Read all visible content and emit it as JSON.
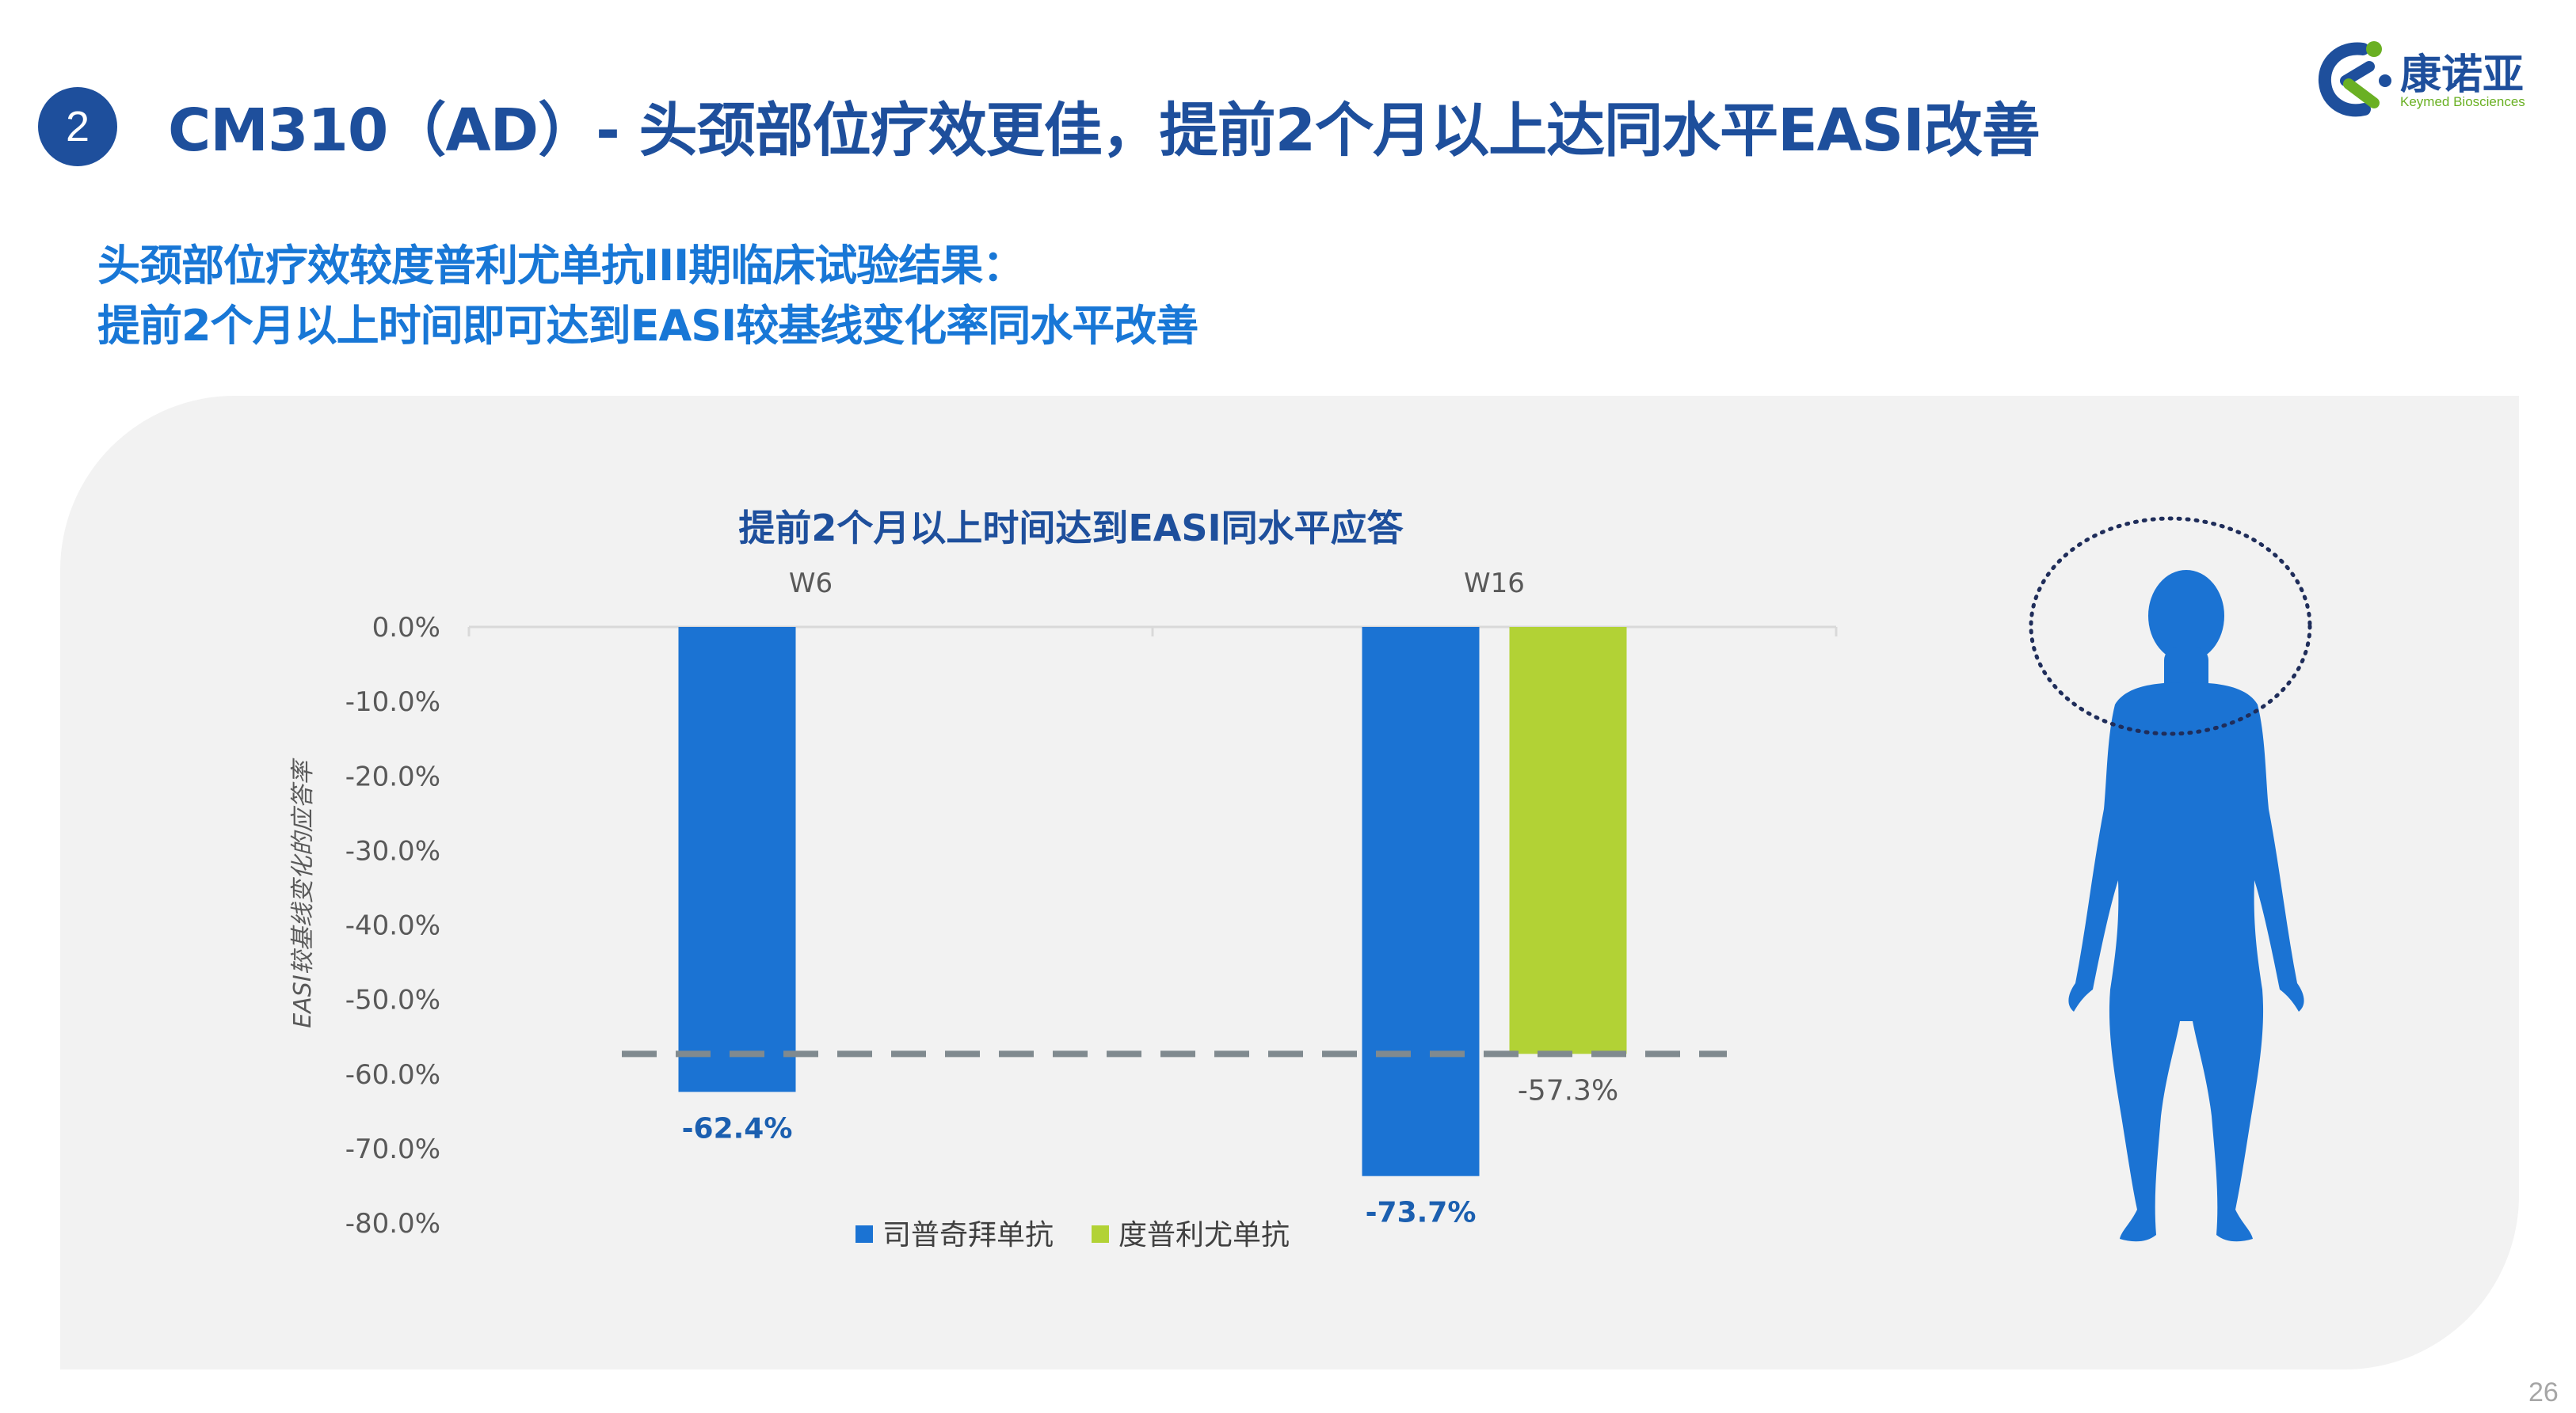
{
  "header": {
    "section_number": "2",
    "title": "CM310（AD）- 头颈部位疗效更佳，提前2个月以上达同水平EASI改善"
  },
  "logo": {
    "cn": "康诺亚",
    "en": "Keymed Biosciences"
  },
  "subtitle": {
    "line1": "头颈部位疗效较度普利尤单抗III期临床试验结果：",
    "line2": "提前2个月以上时间即可达到EASI较基线变化率同水平改善"
  },
  "chart_data": {
    "type": "bar",
    "title": "提前2个月以上时间达到EASI同水平应答",
    "ylabel": "EASI较基线变化的应答率",
    "categories": [
      "W6",
      "W16"
    ],
    "ylim": [
      -80,
      0
    ],
    "y_ticks": [
      "0.0%",
      "-10.0%",
      "-20.0%",
      "-30.0%",
      "-40.0%",
      "-50.0%",
      "-60.0%",
      "-70.0%",
      "-80.0%"
    ],
    "series": [
      {
        "name": "司普奇拜单抗",
        "color": "#1b73d3",
        "values": [
          -62.4,
          -73.7
        ],
        "labels": [
          "-62.4%",
          "-73.7%"
        ]
      },
      {
        "name": "度普利尤单抗",
        "color": "#b2d235",
        "values": [
          null,
          -57.3
        ],
        "labels": [
          "",
          "-57.3%"
        ]
      }
    ],
    "reference_line": {
      "value": -57.3,
      "style": "dashed",
      "color": "#808a8f"
    },
    "legend_position": "bottom",
    "grid": false
  },
  "footer": {
    "page_number": "26"
  }
}
